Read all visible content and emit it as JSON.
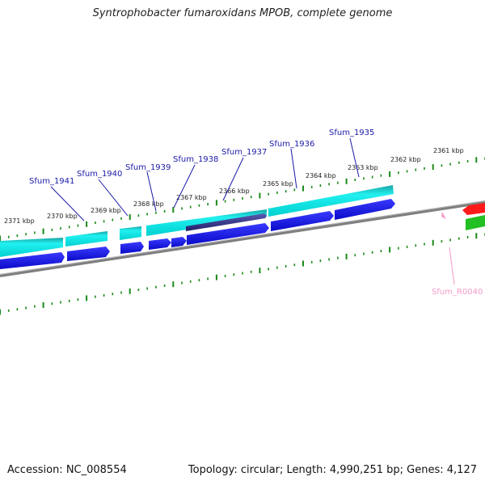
{
  "title": "Syntrophobacter fumaroxidans MPOB, complete genome",
  "footer": {
    "accession": "Accession: NC_008554",
    "summary": "Topology: circular; Length: 4,990,251 bp; Genes: 4,127"
  },
  "ticks": [
    {
      "label": "2371 kbp"
    },
    {
      "label": "2370 kbp"
    },
    {
      "label": "2369 kbp"
    },
    {
      "label": "2368 kbp"
    },
    {
      "label": "2367 kbp"
    },
    {
      "label": "2366 kbp"
    },
    {
      "label": "2365 kbp"
    },
    {
      "label": "2364 kbp"
    },
    {
      "label": "2363 kbp"
    },
    {
      "label": "2362 kbp"
    },
    {
      "label": "2361 kbp"
    }
  ],
  "genes": [
    {
      "label": "Sfum_1941"
    },
    {
      "label": "Sfum_1940"
    },
    {
      "label": "Sfum_1939"
    },
    {
      "label": "Sfum_1938"
    },
    {
      "label": "Sfum_1937"
    },
    {
      "label": "Sfum_1936"
    },
    {
      "label": "Sfum_1935"
    }
  ],
  "rna": {
    "label": "Sfum_R0040"
  },
  "colors": {
    "cds_track": "#00e5e5",
    "gene_track": "#1010e0",
    "backbone": "#808080",
    "tick": "#1a8a1a",
    "rna_marker": "#f49ac9",
    "red_feature": "#ff0000",
    "green_feature": "#22bb22"
  }
}
